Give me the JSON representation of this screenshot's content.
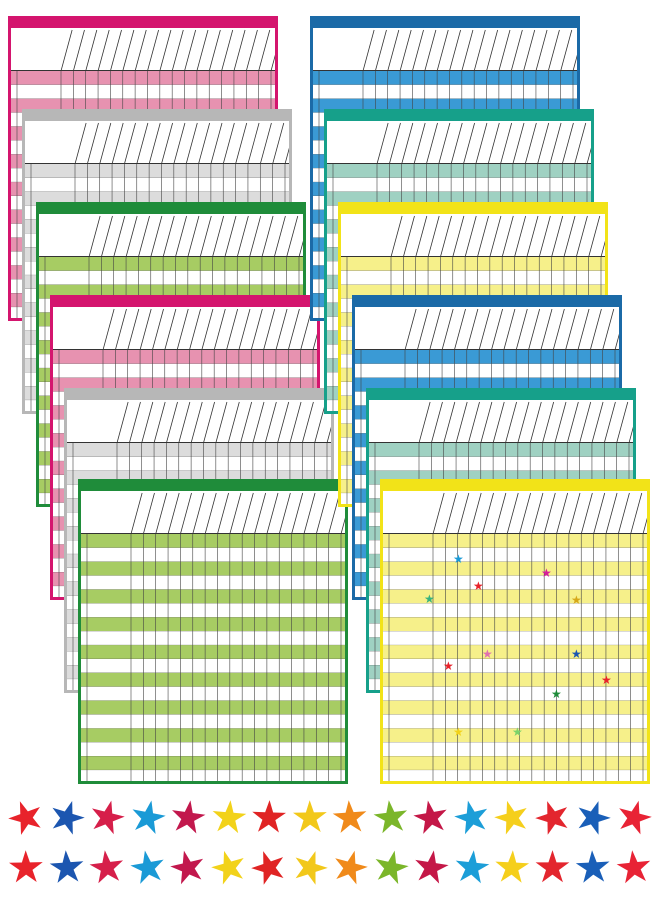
{
  "colors": {
    "magenta": {
      "bar": "#d4156e",
      "stripe": "#e792b0",
      "light": "#f5d4e1"
    },
    "gray": {
      "bar": "#b7b7b7",
      "stripe": "#dcdcdc",
      "light": "#f0f0f0"
    },
    "green": {
      "bar": "#1f8c3a",
      "stripe": "#a7cc63",
      "light": "#dbe9bb"
    },
    "blue": {
      "bar": "#1b6aa7",
      "stripe": "#3a9ad5",
      "light": "#c3e0f2"
    },
    "teal": {
      "bar": "#16a08a",
      "stripe": "#9fd1c2",
      "light": "#d9efe8"
    },
    "yellow": {
      "bar": "#f2e318",
      "stripe": "#f6f08a",
      "light": "#fbf8c8"
    }
  },
  "left_stack": [
    "magenta",
    "gray",
    "green",
    "magenta",
    "gray",
    "green"
  ],
  "right_stack": [
    "blue",
    "teal",
    "yellow",
    "blue",
    "teal",
    "yellow"
  ],
  "star_colors": [
    "#e8232b",
    "#1c56b0",
    "#d61f4a",
    "#1a9ad6",
    "#c2184d",
    "#f2d21a",
    "#e02424",
    "#f2c81a",
    "#f08a1a",
    "#7bb62a",
    "#c41747",
    "#1c9ed8",
    "#f5cf1c",
    "#e3262e",
    "#1a5fb8",
    "#e82335"
  ],
  "placed_stars": [
    {
      "color": "#1a9ad6"
    },
    {
      "color": "#d61f9a"
    },
    {
      "color": "#e8232b"
    },
    {
      "color": "#36b37e"
    },
    {
      "color": "#d6a81a"
    },
    {
      "color": "#e070b0"
    },
    {
      "color": "#1c56b0"
    },
    {
      "color": "#e8232b"
    },
    {
      "color": "#e8232b"
    },
    {
      "color": "#1f8c3a"
    },
    {
      "color": "#f2d21a"
    },
    {
      "color": "#7bd36a"
    }
  ]
}
